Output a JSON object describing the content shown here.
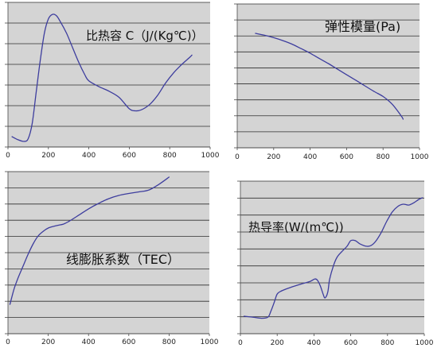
{
  "chart_data": [
    {
      "type": "line",
      "title": "比热容 C（J/(Kg℃)）",
      "xlim": [
        0,
        1000
      ],
      "xticks": [
        0,
        200,
        400,
        600,
        800,
        1000
      ],
      "ylim": [
        0,
        7
      ],
      "grid": true,
      "series": [
        {
          "x": [
            20,
            50,
            80,
            100,
            120,
            140,
            160,
            180,
            200,
            220,
            240,
            260,
            290,
            320,
            350,
            380,
            400,
            450,
            500,
            550,
            600,
            630,
            660,
            700,
            740,
            780,
            820,
            860,
            900,
            910
          ],
          "y": [
            0.5,
            0.35,
            0.27,
            0.4,
            1.15,
            2.7,
            4.2,
            5.5,
            6.2,
            6.42,
            6.35,
            6.05,
            5.5,
            4.8,
            4.1,
            3.5,
            3.2,
            2.92,
            2.7,
            2.4,
            1.85,
            1.75,
            1.8,
            2.05,
            2.5,
            3.1,
            3.6,
            4.0,
            4.35,
            4.45
          ]
        }
      ]
    },
    {
      "type": "line",
      "title": "弹性模量(Pa)",
      "xlim": [
        0,
        1000
      ],
      "xticks": [
        0,
        200,
        400,
        600,
        800,
        1000
      ],
      "ylim": [
        0,
        9
      ],
      "grid": true,
      "series": [
        {
          "x": [
            100,
            150,
            200,
            250,
            300,
            350,
            400,
            450,
            500,
            550,
            600,
            650,
            700,
            750,
            800,
            850,
            900,
            910
          ],
          "y": [
            7.16,
            7.04,
            6.89,
            6.71,
            6.49,
            6.21,
            5.92,
            5.59,
            5.27,
            4.92,
            4.57,
            4.23,
            3.88,
            3.53,
            3.21,
            2.73,
            1.99,
            1.79
          ]
        }
      ]
    },
    {
      "type": "line",
      "title": "线膨胀系数（TEC）",
      "xlim": [
        0,
        1000
      ],
      "xticks": [
        0,
        200,
        400,
        600,
        800,
        1000
      ],
      "ylim": [
        0,
        10
      ],
      "grid": true,
      "series": [
        {
          "x": [
            10,
            30,
            50,
            75,
            100,
            125,
            150,
            175,
            200,
            225,
            250,
            275,
            300,
            350,
            400,
            450,
            500,
            550,
            600,
            650,
            700,
            750,
            800
          ],
          "y": [
            1.81,
            2.75,
            3.43,
            4.17,
            4.9,
            5.54,
            6.03,
            6.32,
            6.52,
            6.62,
            6.69,
            6.76,
            6.91,
            7.3,
            7.7,
            8.04,
            8.33,
            8.53,
            8.65,
            8.75,
            8.87,
            9.22,
            9.66
          ]
        }
      ]
    },
    {
      "type": "line",
      "title": "热导率(W/(m℃))",
      "xlim": [
        0,
        1000
      ],
      "xticks": [
        0,
        200,
        400,
        600,
        800,
        1000
      ],
      "ylim": [
        0,
        9
      ],
      "grid": true,
      "series": [
        {
          "x": [
            20,
            65,
            115,
            150,
            165,
            185,
            200,
            225,
            270,
            325,
            380,
            405,
            420,
            435,
            450,
            460,
            475,
            485,
            505,
            525,
            550,
            580,
            600,
            625,
            650,
            685,
            710,
            735,
            765,
            795,
            825,
            855,
            885,
            915,
            945,
            970,
            990
          ],
          "y": [
            1.03,
            0.98,
            0.91,
            0.98,
            1.31,
            1.88,
            2.34,
            2.53,
            2.72,
            2.91,
            3.09,
            3.23,
            3.14,
            2.81,
            2.34,
            2.11,
            2.44,
            3.19,
            3.98,
            4.5,
            4.83,
            5.16,
            5.49,
            5.49,
            5.3,
            5.16,
            5.2,
            5.44,
            5.95,
            6.61,
            7.17,
            7.5,
            7.64,
            7.59,
            7.74,
            7.92,
            8.02
          ]
        }
      ]
    }
  ],
  "colors": {
    "page_background": "#ffffff",
    "plot_background": "#d4d4d4",
    "gridline": "#2e2e2e",
    "axis": "#4a4a4a",
    "series_line": "#3d3d9e",
    "tick_text": "#222222",
    "title_text": "#111111"
  }
}
